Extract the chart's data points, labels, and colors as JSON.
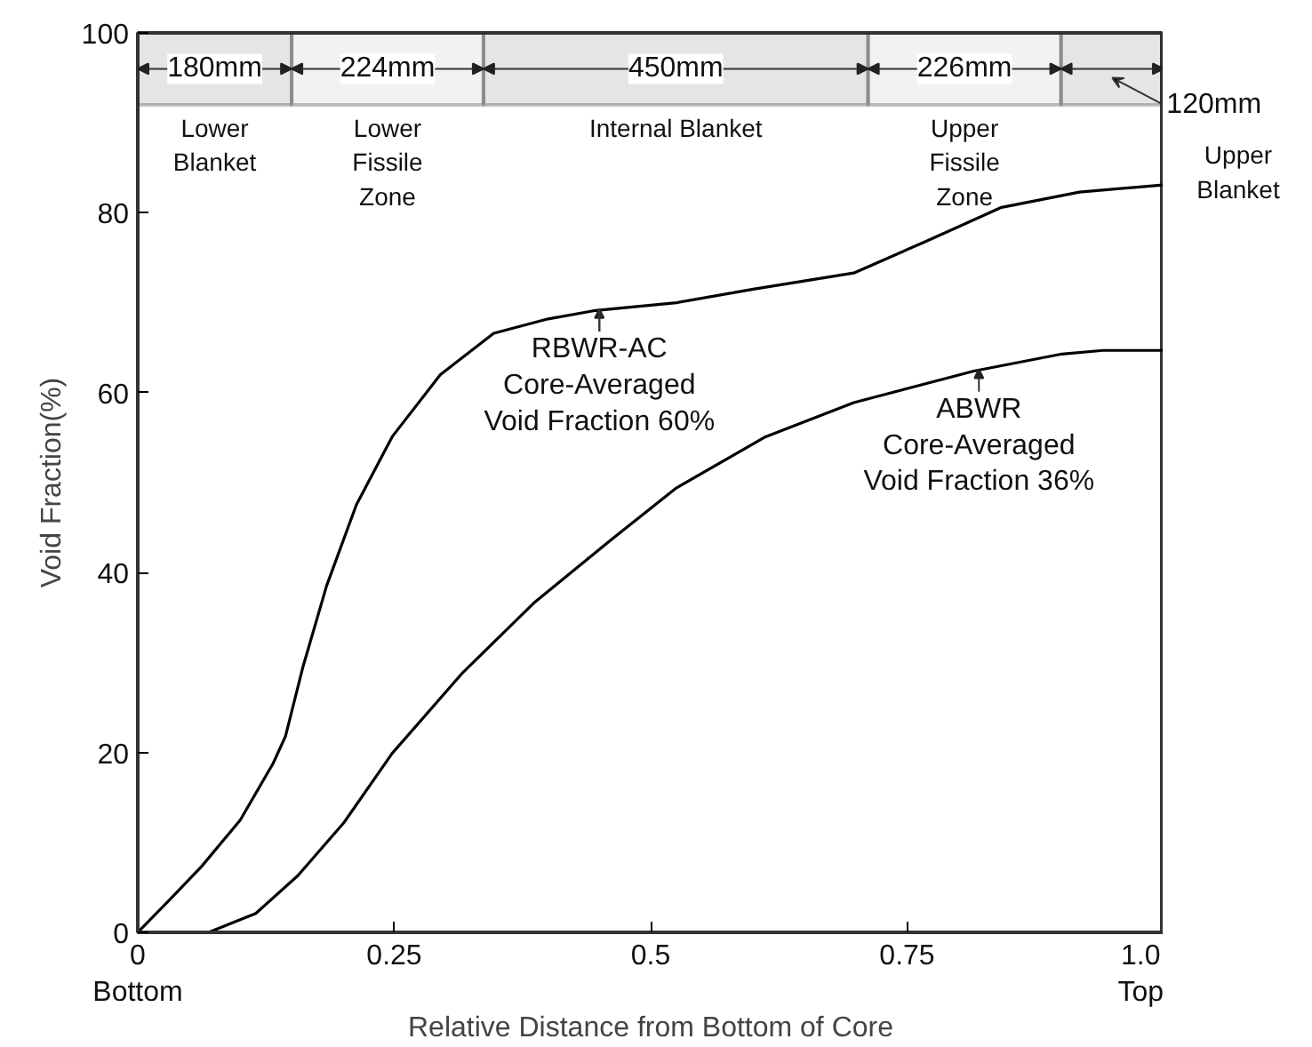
{
  "chart_data": {
    "type": "line",
    "xlabel": "Relative Distance from Bottom of Core",
    "ylabel": "Void Fraction(%)",
    "xlim": [
      0,
      1.0
    ],
    "ylim": [
      0,
      100
    ],
    "xticks": [
      {
        "value": 0,
        "label": "0\nBottom"
      },
      0.25,
      0.5,
      0.75,
      {
        "value": 1.0,
        "label": "1.0\nTop"
      }
    ],
    "yticks": [
      0,
      20,
      40,
      60,
      80,
      100
    ],
    "grid": false,
    "series": [
      {
        "color": "#000000",
        "x": [
          0,
          0.03,
          0.062,
          0.1,
          0.132,
          0.144,
          0.161,
          0.184,
          0.213,
          0.248,
          0.295,
          0.347,
          0.4,
          0.444,
          0.525,
          0.6,
          0.698,
          0.768,
          0.842,
          0.918,
          1.0
        ],
        "values": [
          0,
          3.5,
          7.3,
          12.5,
          18.8,
          21.8,
          29.5,
          38.5,
          47.5,
          55.1,
          62,
          66.6,
          68.2,
          69.1,
          70,
          71.5,
          73.3,
          76.8,
          80.6,
          82.3,
          83.1
        ]
      },
      {
        "color": "#000000",
        "x": [
          0,
          0.069,
          0.115,
          0.156,
          0.201,
          0.248,
          0.317,
          0.386,
          0.461,
          0.525,
          0.612,
          0.698,
          0.815,
          0.901,
          0.941,
          1.0
        ],
        "values": [
          0,
          0,
          2.1,
          6.3,
          12.2,
          19.9,
          28.9,
          36.6,
          43.6,
          49.4,
          55.1,
          58.9,
          62.4,
          64.3,
          64.7,
          64.7
        ]
      }
    ],
    "bands": [
      {
        "axis": "x",
        "from": 0,
        "to": 0.15,
        "label": "180mm"
      },
      {
        "axis": "x",
        "from": 0.15,
        "to": 0.337,
        "label": "224mm"
      },
      {
        "axis": "x",
        "from": 0.337,
        "to": 0.712,
        "label": "450mm"
      },
      {
        "axis": "x",
        "from": 0.712,
        "to": 0.9,
        "label": "226mm"
      },
      {
        "axis": "x",
        "from": 0.9,
        "to": 1.0,
        "label": "120mm"
      }
    ],
    "annotations": [
      "Lower\nBlanket",
      "Lower\nFissile\nZone",
      "Internal Blanket",
      "Upper\nFissile\nZone",
      "Upper\nBlanket",
      {
        "text": "RBWR-AC\nCore-Averaged\nVoid Fraction 60%",
        "x": 0.45,
        "y": 69.3
      },
      {
        "text": "ABWR\nCore-Averaged\nVoid Fraction 36%",
        "x": 0.82,
        "y": 62.6
      }
    ]
  }
}
